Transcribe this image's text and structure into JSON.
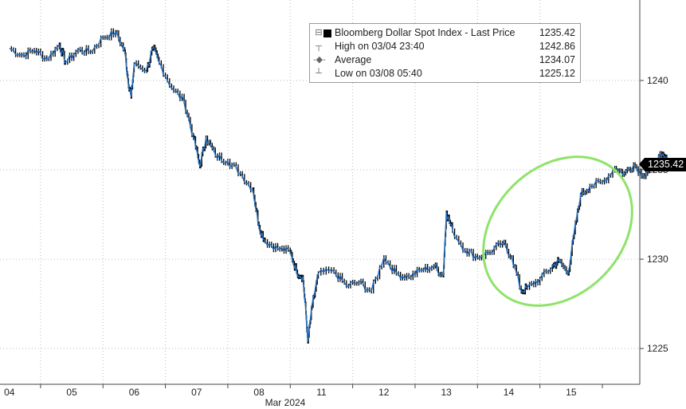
{
  "legend": {
    "series_name": "Bloomberg Dollar Spot Index - Last Price",
    "series_value": "1235.42",
    "high_label": "High on 03/04 23:40",
    "high_value": "1242.86",
    "avg_label": "Average",
    "avg_value": "1234.07",
    "low_label": "Low on 03/08 05:40",
    "low_value": "1225.12"
  },
  "last_price_tag": "1235.42",
  "colors": {
    "line": "#1f6fc4",
    "candle": "#000000",
    "highlight": "#8fe36a",
    "grid": "#bbbbbb"
  },
  "chart_data": {
    "type": "line",
    "x_tick_labels": [
      "04",
      "05",
      "06",
      "07",
      "08",
      "11",
      "12",
      "13",
      "14",
      "15"
    ],
    "x_sublabel": "Mar 2024",
    "y_tick_labels": [
      "1225",
      "1230",
      "1235",
      "1240"
    ],
    "y_ticks": [
      1225,
      1230,
      1235,
      1240
    ],
    "ylim": [
      1223,
      1244.5
    ],
    "xlim": [
      -0.15,
      10.1
    ],
    "grid": true,
    "series": [
      {
        "values": [
          [
            0,
            1241.8
          ],
          [
            0.2,
            1241.4
          ],
          [
            0.4,
            1241.7
          ],
          [
            0.6,
            1241.2
          ],
          [
            0.8,
            1242.0
          ],
          [
            0.9,
            1241.0
          ],
          [
            1.1,
            1241.7
          ],
          [
            1.3,
            1241.6
          ],
          [
            1.5,
            1242.4
          ],
          [
            1.7,
            1242.7
          ],
          [
            1.85,
            1241.6
          ],
          [
            1.9,
            1240.0
          ],
          [
            1.95,
            1239.1
          ],
          [
            2.0,
            1240.9
          ],
          [
            2.2,
            1240.6
          ],
          [
            2.3,
            1241.8
          ],
          [
            2.4,
            1241.0
          ],
          [
            2.6,
            1239.6
          ],
          [
            2.8,
            1238.8
          ],
          [
            2.95,
            1236.8
          ],
          [
            3.05,
            1235.2
          ],
          [
            3.15,
            1236.8
          ],
          [
            3.3,
            1235.8
          ],
          [
            3.5,
            1235.5
          ],
          [
            3.7,
            1234.8
          ],
          [
            3.9,
            1233.9
          ],
          [
            4.0,
            1231.8
          ],
          [
            4.1,
            1231.0
          ],
          [
            4.3,
            1230.6
          ],
          [
            4.5,
            1230.4
          ],
          [
            4.6,
            1229.3
          ],
          [
            4.7,
            1229.0
          ],
          [
            4.75,
            1227.0
          ],
          [
            4.78,
            1225.4
          ],
          [
            4.85,
            1227.4
          ],
          [
            4.95,
            1229.2
          ],
          [
            5.2,
            1229.3
          ],
          [
            5.4,
            1228.5
          ],
          [
            5.6,
            1228.7
          ],
          [
            5.8,
            1228.2
          ],
          [
            6.0,
            1230.1
          ],
          [
            6.2,
            1229.2
          ],
          [
            6.4,
            1229.0
          ],
          [
            6.6,
            1229.4
          ],
          [
            6.8,
            1229.6
          ],
          [
            6.95,
            1229.1
          ],
          [
            7.0,
            1232.6
          ],
          [
            7.1,
            1231.6
          ],
          [
            7.3,
            1230.5
          ],
          [
            7.5,
            1230.1
          ],
          [
            7.7,
            1230.4
          ],
          [
            7.9,
            1230.9
          ],
          [
            8.05,
            1230.1
          ],
          [
            8.2,
            1228.2
          ],
          [
            8.3,
            1228.4
          ],
          [
            8.5,
            1228.9
          ],
          [
            8.7,
            1229.6
          ],
          [
            8.8,
            1229.9
          ],
          [
            8.95,
            1229.2
          ],
          [
            9.05,
            1231.5
          ],
          [
            9.15,
            1233.6
          ],
          [
            9.3,
            1234.1
          ],
          [
            9.5,
            1234.3
          ],
          [
            9.7,
            1235.1
          ],
          [
            9.85,
            1234.8
          ],
          [
            10.0,
            1235.3
          ],
          [
            10.15,
            1234.7
          ],
          [
            10.3,
            1235.2
          ],
          [
            10.45,
            1235.8
          ],
          [
            10.55,
            1235.42
          ]
        ]
      }
    ]
  }
}
